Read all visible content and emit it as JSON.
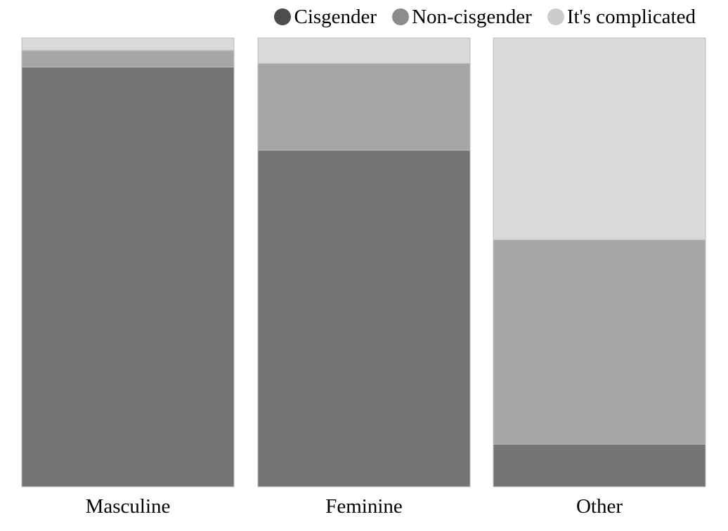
{
  "chart_data": {
    "type": "bar",
    "stacked": true,
    "normalized": true,
    "categories": [
      "Masculine",
      "Feminine",
      "Other"
    ],
    "series": [
      {
        "name": "Cisgender",
        "values": [
          0.935,
          0.75,
          0.095
        ],
        "color": "#747474",
        "legend_color": "#4d4d4d"
      },
      {
        "name": "Non-cisgender",
        "values": [
          0.037,
          0.193,
          0.455
        ],
        "color": "#a6a6a6",
        "legend_color": "#8c8c8c"
      },
      {
        "name": "It's complicated",
        "values": [
          0.028,
          0.057,
          0.45
        ],
        "color": "#d9d9d9",
        "legend_color": "#cccccc"
      }
    ],
    "ylim": [
      0,
      1
    ],
    "legend_position": "top-right",
    "grid": false,
    "title": "",
    "xlabel": "",
    "ylabel": ""
  }
}
